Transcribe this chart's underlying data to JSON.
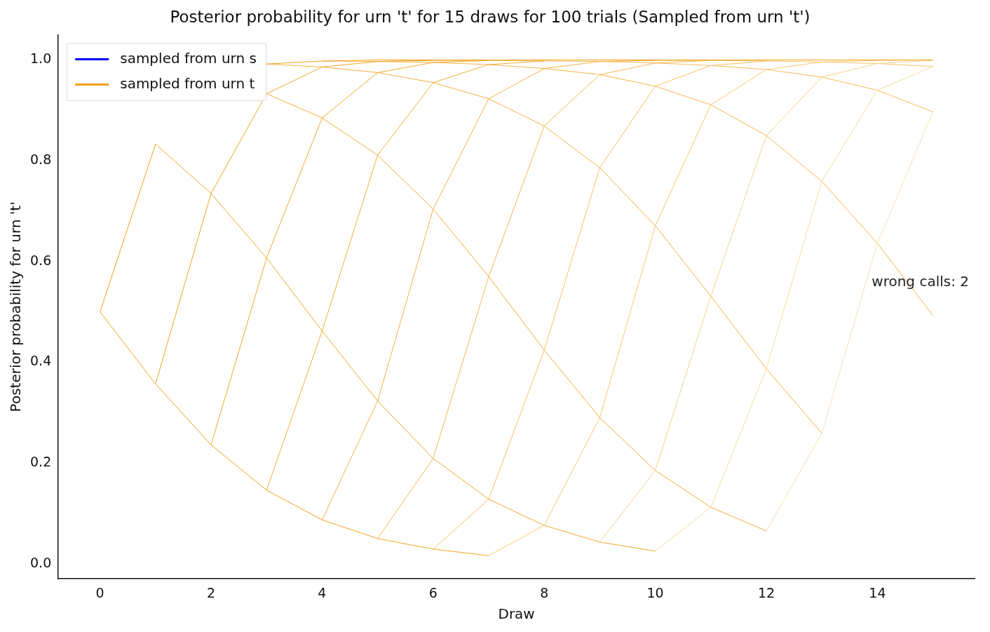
{
  "chart_data": {
    "type": "line",
    "title": "Posterior probability for urn 't' for 15 draws for 100 trials (Sampled from urn 't')",
    "xlabel": "Draw",
    "ylabel": "Posterior probability for urn 't'",
    "x": [
      0,
      1,
      2,
      3,
      4,
      5,
      6,
      7,
      8,
      9,
      10,
      11,
      12,
      13,
      14,
      15
    ],
    "series": [
      {
        "name": "sampled from urn s",
        "color": "#0000ff",
        "values": [
          null,
          null,
          null,
          null,
          null,
          null,
          null,
          null,
          null,
          null,
          null,
          null,
          null,
          null,
          null,
          null
        ]
      },
      {
        "name": "sampled from urn t",
        "color": "#f0a01a",
        "values": [
          0.5,
          0.833,
          null,
          0.992,
          0.998,
          1,
          1,
          1,
          1,
          1,
          1,
          1,
          1,
          1,
          1,
          1
        ]
      },
      {
        "color": "#f1a424",
        "values": [
          null,
          0.357,
          0.735,
          0.933,
          0.986,
          0.997,
          0.999,
          null,
          null,
          null,
          null,
          null,
          null,
          null,
          null,
          null
        ]
      },
      {
        "color": "#f2a82e",
        "values": [
          null,
          null,
          0.236,
          0.607,
          0.885,
          0.975,
          0.995,
          0.999,
          null,
          null,
          null,
          null,
          null,
          null,
          null,
          null
        ]
      },
      {
        "color": "#f3ad38",
        "values": [
          null,
          null,
          null,
          0.146,
          0.462,
          0.811,
          0.955,
          0.991,
          0.998,
          null,
          null,
          null,
          null,
          null,
          null,
          null
        ]
      },
      {
        "color": "#f4b242",
        "values": [
          null,
          null,
          null,
          null,
          0.087,
          0.323,
          0.704,
          0.923,
          0.983,
          0.997,
          0.999,
          null,
          null,
          null,
          null,
          null
        ]
      },
      {
        "color": "#f5b84f",
        "values": [
          null,
          null,
          null,
          null,
          null,
          0.05,
          0.209,
          0.57,
          0.869,
          0.971,
          0.994,
          0.999,
          null,
          null,
          null,
          null
        ]
      },
      {
        "color": "#f6bf5f",
        "values": [
          null,
          null,
          null,
          null,
          null,
          null,
          0.029,
          0.128,
          0.424,
          0.786,
          0.948,
          0.989,
          0.998,
          null,
          null,
          null
        ]
      },
      {
        "color": "#f7c770",
        "values": [
          null,
          null,
          null,
          null,
          null,
          null,
          null,
          0.016,
          0.076,
          0.29,
          0.671,
          0.911,
          0.981,
          0.996,
          0.999,
          1
        ]
      },
      {
        "color": "#f8d088",
        "values": [
          null,
          null,
          null,
          null,
          null,
          null,
          null,
          null,
          null,
          0.043,
          0.185,
          0.531,
          0.85,
          0.966,
          0.993,
          0.999
        ]
      },
      {
        "color": "#f9d99c",
        "values": [
          null,
          null,
          null,
          null,
          null,
          null,
          null,
          null,
          null,
          null,
          0.025,
          0.112,
          0.387,
          0.759,
          0.94,
          0.987
        ]
      },
      {
        "color": "#fae1b0",
        "values": [
          null,
          null,
          null,
          null,
          null,
          null,
          null,
          null,
          null,
          null,
          null,
          null,
          0.065,
          0.259,
          0.636,
          0.897
        ]
      },
      {
        "color": "#f0a21f",
        "values": [
          0.5,
          0.357,
          0.236,
          0.146,
          0.087,
          0.05,
          0.029,
          0.016,
          null,
          null,
          null,
          null,
          null,
          null,
          null,
          null
        ]
      },
      {
        "color": "#f1a629",
        "values": [
          null,
          0.833,
          0.735,
          0.607,
          0.462,
          0.323,
          0.209,
          0.128,
          0.076,
          0.043,
          0.025,
          null,
          null,
          null,
          null,
          null
        ]
      },
      {
        "color": "#f2ab33",
        "values": [
          null,
          null,
          null,
          0.933,
          0.885,
          0.811,
          0.704,
          0.57,
          0.424,
          0.29,
          0.185,
          0.112,
          0.065,
          null,
          null,
          null
        ]
      },
      {
        "color": "#f3b03d",
        "values": [
          null,
          null,
          null,
          0.992,
          0.986,
          0.975,
          0.955,
          0.923,
          0.869,
          0.786,
          0.671,
          0.531,
          0.387,
          0.259,
          null,
          null
        ]
      },
      {
        "color": "#f4b547",
        "values": [
          null,
          null,
          null,
          null,
          0.998,
          0.997,
          0.995,
          0.991,
          0.983,
          0.971,
          0.948,
          0.911,
          0.85,
          0.759,
          0.636,
          0.493
        ]
      },
      {
        "color": "#f5bb55",
        "values": [
          null,
          null,
          null,
          null,
          null,
          1,
          0.999,
          0.999,
          0.998,
          0.997,
          0.994,
          0.989,
          0.981,
          0.966,
          0.94,
          0.897
        ]
      },
      {
        "color": "#f7c466",
        "values": [
          null,
          null,
          null,
          null,
          null,
          null,
          1,
          1,
          1,
          1,
          0.999,
          0.999,
          0.998,
          0.996,
          0.993,
          0.987
        ]
      }
    ],
    "xlim": [
      -0.75,
      15.75
    ],
    "xticks": [
      0,
      2,
      4,
      6,
      8,
      10,
      12,
      14
    ],
    "ylim": [
      -0.03,
      1.05
    ],
    "yticks": [
      {
        "value": 0,
        "label": "0.0"
      },
      {
        "value": 0.2,
        "label": "0.2"
      },
      {
        "value": 0.4,
        "label": "0.4"
      },
      {
        "value": 0.6,
        "label": "0.6"
      },
      {
        "value": 0.8,
        "label": "0.8"
      },
      {
        "value": 1,
        "label": "1.0"
      }
    ],
    "annotations": [
      "wrong calls: 2"
    ],
    "legend": "top left",
    "grid": false,
    "marker": "none",
    "line_style": "solid"
  }
}
